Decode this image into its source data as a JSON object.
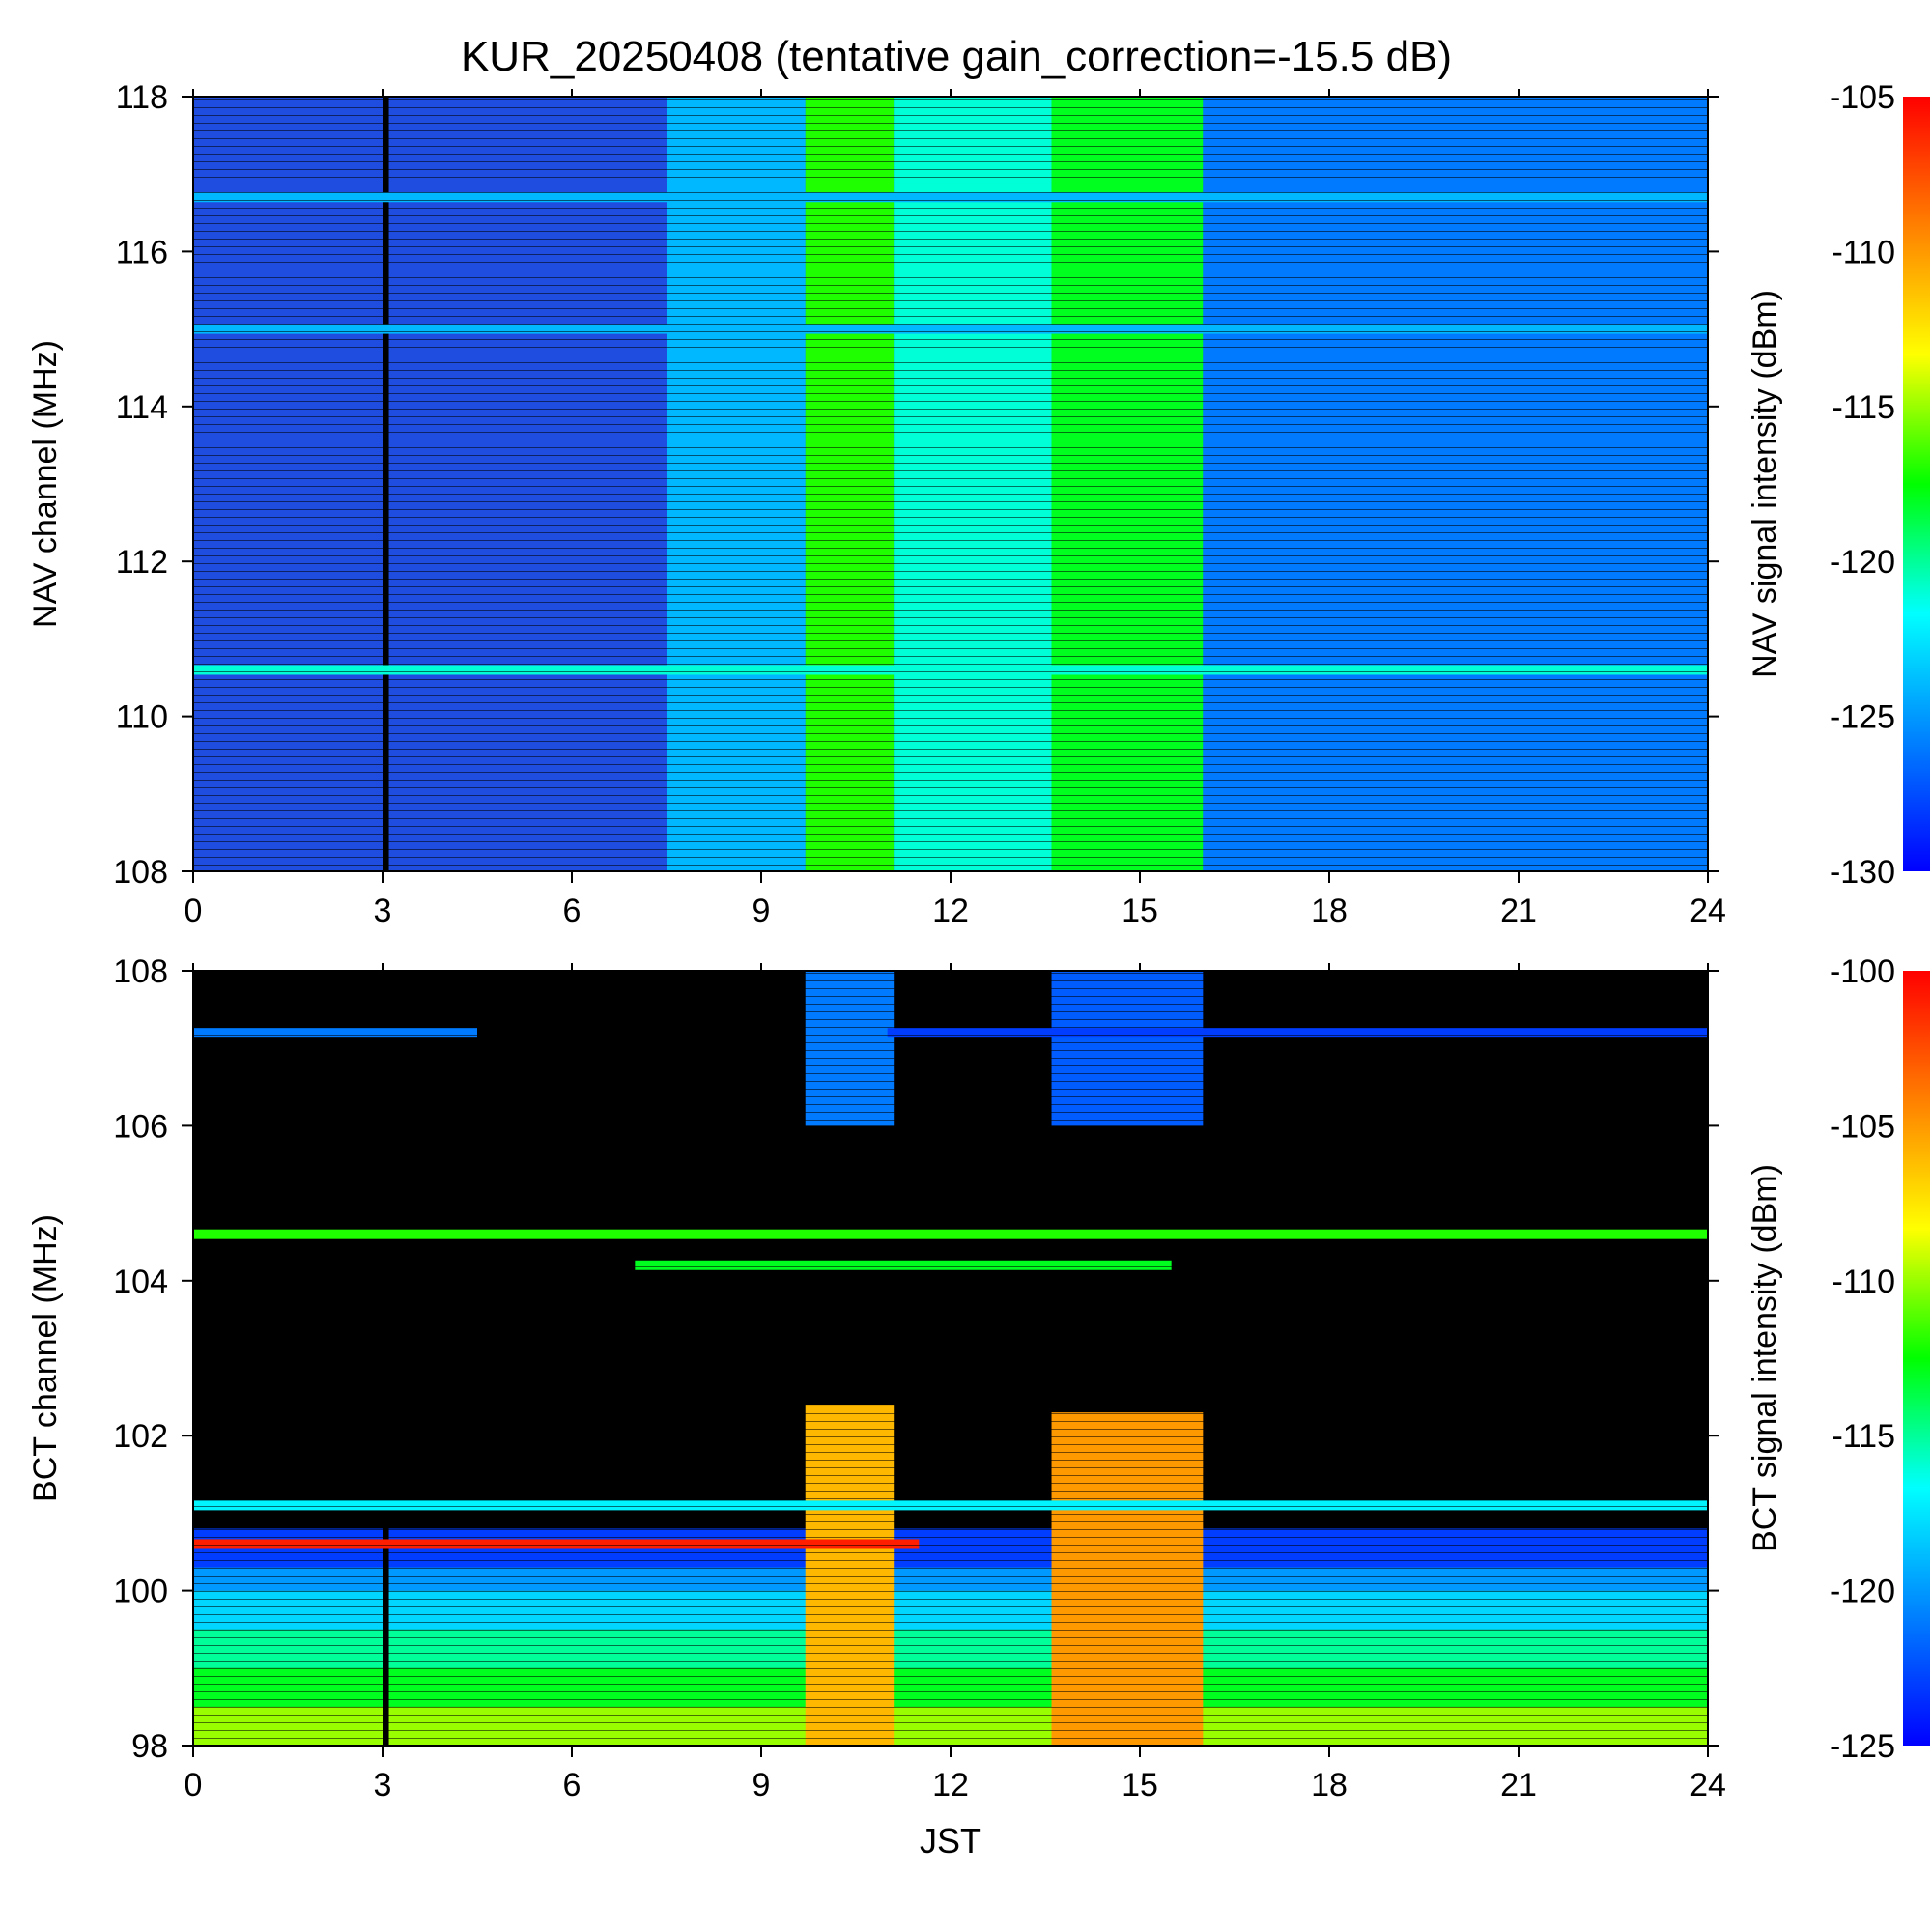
{
  "title": "KUR_20250408 (tentative gain_correction=-15.5 dB)",
  "colors": {
    "background_nav": "#1f4de0",
    "background_bct": "#000000",
    "colormap": [
      "#0000ff",
      "#0080ff",
      "#00ffff",
      "#00ff00",
      "#ffff00",
      "#ff8000",
      "#ff0000"
    ]
  },
  "chart_data": [
    {
      "type": "heatmap",
      "panel": "nav",
      "xlabel": "",
      "ylabel": "NAV channel (MHz)",
      "colorbar_label": "NAV signal intensity (dBm)",
      "xlim": [
        0,
        24
      ],
      "ylim": [
        108,
        118
      ],
      "x_ticks": [
        "0",
        "3",
        "6",
        "9",
        "12",
        "15",
        "18",
        "21",
        "24"
      ],
      "y_ticks": [
        "108",
        "110",
        "112",
        "114",
        "116",
        "118"
      ],
      "colorbar_range": [
        -130,
        -105
      ],
      "colorbar_ticks": [
        "-130",
        "-125",
        "-120",
        "-115",
        "-110",
        "-105"
      ],
      "baseline_dbm": -127,
      "time_bands": [
        {
          "x": [
            3.0,
            3.1
          ],
          "dbm": null,
          "note": "data gap"
        },
        {
          "x": [
            7.5,
            9.7
          ],
          "dbm": -124
        },
        {
          "x": [
            9.7,
            11.1
          ],
          "dbm": -117
        },
        {
          "x": [
            11.1,
            13.6
          ],
          "dbm": -121
        },
        {
          "x": [
            13.6,
            16.0
          ],
          "dbm": -118
        },
        {
          "x": [
            16.0,
            24.0
          ],
          "dbm": -126
        }
      ],
      "channel_lines": [
        {
          "y": 110.6,
          "dbm": -121
        },
        {
          "y": 115.0,
          "dbm": -124
        },
        {
          "y": 116.7,
          "dbm": -124
        }
      ]
    },
    {
      "type": "heatmap",
      "panel": "bct",
      "xlabel": "JST",
      "ylabel": "BCT channel (MHz)",
      "colorbar_label": "BCT signal intensity (dBm)",
      "xlim": [
        0,
        24
      ],
      "ylim": [
        98,
        108
      ],
      "x_ticks": [
        "0",
        "3",
        "6",
        "9",
        "12",
        "15",
        "18",
        "21",
        "24"
      ],
      "y_ticks": [
        "98",
        "100",
        "102",
        "104",
        "106",
        "108"
      ],
      "colorbar_range": [
        -125,
        -100
      ],
      "colorbar_ticks": [
        "-125",
        "-120",
        "-115",
        "-110",
        "-105",
        "-100"
      ],
      "background_dbm": null,
      "frequency_profile": [
        {
          "y": [
            98.0,
            98.5
          ],
          "dbm": -110
        },
        {
          "y": [
            98.5,
            99.0
          ],
          "dbm": -113
        },
        {
          "y": [
            99.0,
            99.5
          ],
          "dbm": -115
        },
        {
          "y": [
            99.5,
            100.0
          ],
          "dbm": -118
        },
        {
          "y": [
            100.0,
            100.3
          ],
          "dbm": -120
        },
        {
          "y": [
            100.3,
            100.8
          ],
          "dbm": -123
        }
      ],
      "channel_lines": [
        {
          "y": 101.1,
          "dbm": -117,
          "x": [
            0,
            24
          ]
        },
        {
          "y": 100.6,
          "dbm": -101,
          "x": [
            0,
            11.5
          ]
        },
        {
          "y": 107.2,
          "dbm": -121,
          "x": [
            0,
            4.5
          ]
        },
        {
          "y": 107.2,
          "dbm": -123,
          "x": [
            11.0,
            24
          ]
        },
        {
          "y": 104.6,
          "dbm": -112,
          "x": [
            0,
            24
          ]
        },
        {
          "y": 104.2,
          "dbm": -113,
          "x": [
            7.0,
            15.5
          ]
        }
      ],
      "time_bands": [
        {
          "x": [
            9.7,
            11.1
          ],
          "y": [
            98.0,
            102.4
          ],
          "dbm": -106
        },
        {
          "x": [
            9.7,
            11.1
          ],
          "y": [
            106.0,
            108.0
          ],
          "dbm": -121
        },
        {
          "x": [
            13.6,
            16.0
          ],
          "y": [
            98.0,
            102.3
          ],
          "dbm": -105
        },
        {
          "x": [
            13.6,
            16.0
          ],
          "y": [
            106.0,
            108.0
          ],
          "dbm": -122
        },
        {
          "x": [
            3.0,
            3.1
          ],
          "dbm": null,
          "note": "data gap"
        }
      ]
    }
  ]
}
